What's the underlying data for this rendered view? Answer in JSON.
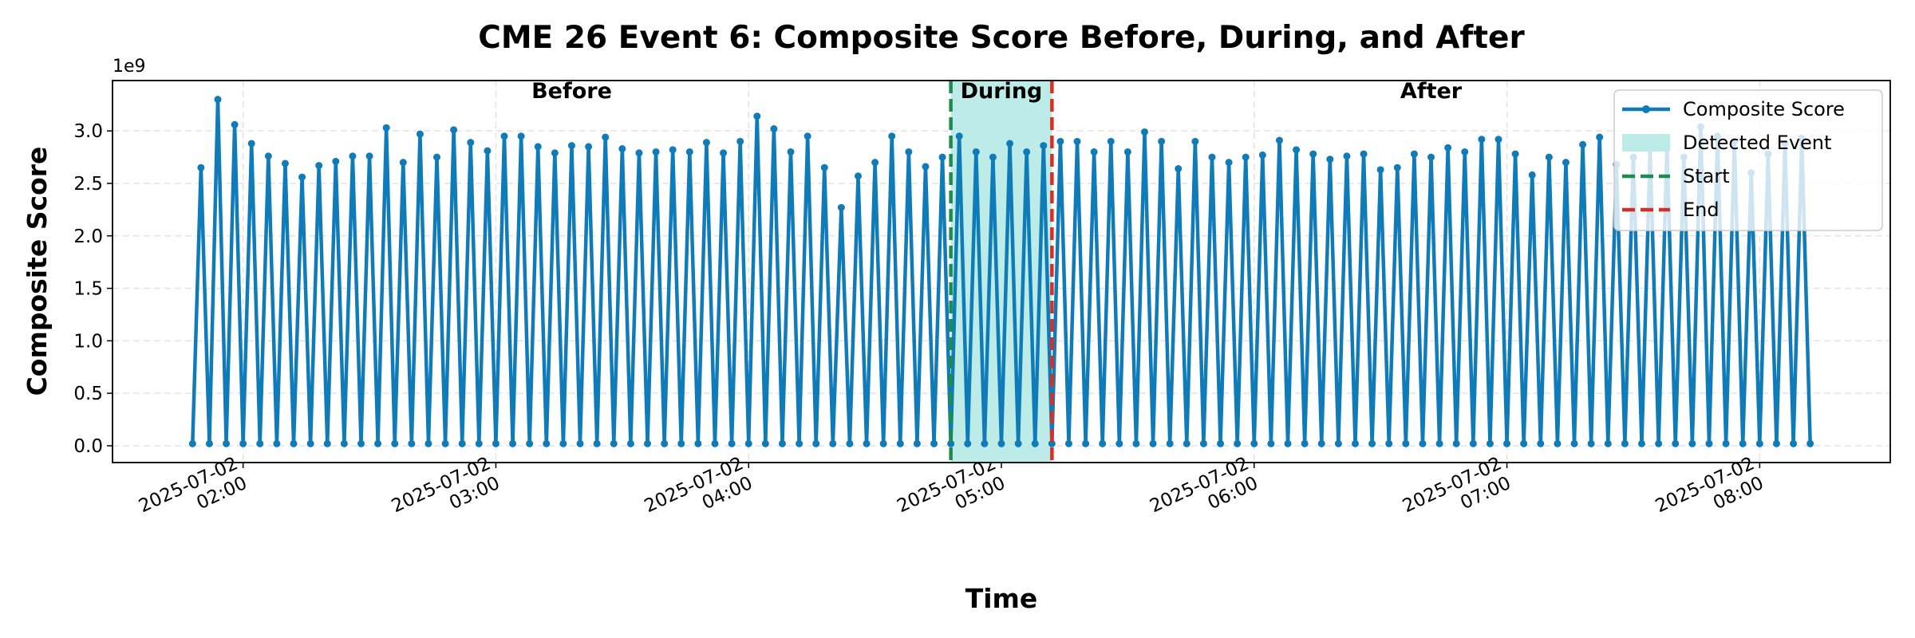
{
  "chart_data": {
    "type": "line",
    "title": "CME 26 Event 6: Composite Score Before, During, and After",
    "xlabel": "Time",
    "ylabel": "Composite Score",
    "y_offset_label": "1e9",
    "grid": true,
    "legend": "upper right",
    "xlim": [
      "2025-07-02 01:29",
      "2025-07-02 08:31"
    ],
    "xticks": [
      {
        "value": "2025-07-02 02:00",
        "label": [
          "2025-07-02",
          "02:00"
        ]
      },
      {
        "value": "2025-07-02 03:00",
        "label": [
          "2025-07-02",
          "03:00"
        ]
      },
      {
        "value": "2025-07-02 04:00",
        "label": [
          "2025-07-02",
          "04:00"
        ]
      },
      {
        "value": "2025-07-02 05:00",
        "label": [
          "2025-07-02",
          "05:00"
        ]
      },
      {
        "value": "2025-07-02 06:00",
        "label": [
          "2025-07-02",
          "06:00"
        ]
      },
      {
        "value": "2025-07-02 07:00",
        "label": [
          "2025-07-02",
          "07:00"
        ]
      },
      {
        "value": "2025-07-02 08:00",
        "label": [
          "2025-07-02",
          "08:00"
        ]
      }
    ],
    "ylim": [
      -0.16,
      3.48
    ],
    "yticks": [
      {
        "value": 0,
        "label": "0.0"
      },
      0.5,
      {
        "value": 1,
        "label": "1.0"
      },
      1.5,
      {
        "value": 2,
        "label": "2.0"
      },
      2.5,
      {
        "value": 3,
        "label": "3.0"
      }
    ],
    "event": {
      "name": "Detected Event",
      "color": "#bdebe7",
      "start": {
        "name": "Start",
        "x": "2025-07-02 04:48",
        "color": "#1e8c4e"
      },
      "end": {
        "name": "End",
        "x": "2025-07-02 05:12",
        "color": "#d62f28"
      }
    },
    "annotations": [
      {
        "text": "Before",
        "color": "#444444"
      },
      {
        "text": "During",
        "color": "#0f7bb8"
      },
      {
        "text": "After",
        "color": "#444444"
      }
    ],
    "x": [
      "2025-07-02 01:48",
      "2025-07-02 01:50",
      "2025-07-02 01:52",
      "2025-07-02 01:54",
      "2025-07-02 01:56",
      "2025-07-02 01:58",
      "2025-07-02 02:00",
      "2025-07-02 02:02",
      "2025-07-02 02:04",
      "2025-07-02 02:06",
      "2025-07-02 02:08",
      "2025-07-02 02:10",
      "2025-07-02 02:12",
      "2025-07-02 02:14",
      "2025-07-02 02:16",
      "2025-07-02 02:18",
      "2025-07-02 02:20",
      "2025-07-02 02:22",
      "2025-07-02 02:24",
      "2025-07-02 02:26",
      "2025-07-02 02:28",
      "2025-07-02 02:30",
      "2025-07-02 02:32",
      "2025-07-02 02:34",
      "2025-07-02 02:36",
      "2025-07-02 02:38",
      "2025-07-02 02:40",
      "2025-07-02 02:42",
      "2025-07-02 02:44",
      "2025-07-02 02:46",
      "2025-07-02 02:48",
      "2025-07-02 02:50",
      "2025-07-02 02:52",
      "2025-07-02 02:54",
      "2025-07-02 02:56",
      "2025-07-02 02:58",
      "2025-07-02 03:00",
      "2025-07-02 03:02",
      "2025-07-02 03:04",
      "2025-07-02 03:06",
      "2025-07-02 03:08",
      "2025-07-02 03:10",
      "2025-07-02 03:12",
      "2025-07-02 03:14",
      "2025-07-02 03:16",
      "2025-07-02 03:18",
      "2025-07-02 03:20",
      "2025-07-02 03:22",
      "2025-07-02 03:24",
      "2025-07-02 03:26",
      "2025-07-02 03:28",
      "2025-07-02 03:30",
      "2025-07-02 03:32",
      "2025-07-02 03:34",
      "2025-07-02 03:36",
      "2025-07-02 03:38",
      "2025-07-02 03:40",
      "2025-07-02 03:42",
      "2025-07-02 03:44",
      "2025-07-02 03:46",
      "2025-07-02 03:48",
      "2025-07-02 03:50",
      "2025-07-02 03:52",
      "2025-07-02 03:54",
      "2025-07-02 03:56",
      "2025-07-02 03:58",
      "2025-07-02 04:00",
      "2025-07-02 04:02",
      "2025-07-02 04:04",
      "2025-07-02 04:06",
      "2025-07-02 04:08",
      "2025-07-02 04:10",
      "2025-07-02 04:12",
      "2025-07-02 04:14",
      "2025-07-02 04:16",
      "2025-07-02 04:18",
      "2025-07-02 04:20",
      "2025-07-02 04:22",
      "2025-07-02 04:24",
      "2025-07-02 04:26",
      "2025-07-02 04:28",
      "2025-07-02 04:30",
      "2025-07-02 04:32",
      "2025-07-02 04:34",
      "2025-07-02 04:36",
      "2025-07-02 04:38",
      "2025-07-02 04:40",
      "2025-07-02 04:42",
      "2025-07-02 04:44",
      "2025-07-02 04:46",
      "2025-07-02 04:48",
      "2025-07-02 04:50",
      "2025-07-02 04:52",
      "2025-07-02 04:54",
      "2025-07-02 04:56",
      "2025-07-02 04:58",
      "2025-07-02 05:00",
      "2025-07-02 05:02",
      "2025-07-02 05:04",
      "2025-07-02 05:06",
      "2025-07-02 05:08",
      "2025-07-02 05:10",
      "2025-07-02 05:12",
      "2025-07-02 05:14",
      "2025-07-02 05:16",
      "2025-07-02 05:18",
      "2025-07-02 05:20",
      "2025-07-02 05:22",
      "2025-07-02 05:24",
      "2025-07-02 05:26",
      "2025-07-02 05:28",
      "2025-07-02 05:30",
      "2025-07-02 05:32",
      "2025-07-02 05:34",
      "2025-07-02 05:36",
      "2025-07-02 05:38",
      "2025-07-02 05:40",
      "2025-07-02 05:42",
      "2025-07-02 05:44",
      "2025-07-02 05:46",
      "2025-07-02 05:48",
      "2025-07-02 05:50",
      "2025-07-02 05:52",
      "2025-07-02 05:54",
      "2025-07-02 05:56",
      "2025-07-02 05:58",
      "2025-07-02 06:00",
      "2025-07-02 06:02",
      "2025-07-02 06:04",
      "2025-07-02 06:06",
      "2025-07-02 06:08",
      "2025-07-02 06:10",
      "2025-07-02 06:12",
      "2025-07-02 06:14",
      "2025-07-02 06:16",
      "2025-07-02 06:18",
      "2025-07-02 06:20",
      "2025-07-02 06:22",
      "2025-07-02 06:24",
      "2025-07-02 06:26",
      "2025-07-02 06:28",
      "2025-07-02 06:30",
      "2025-07-02 06:32",
      "2025-07-02 06:34",
      "2025-07-02 06:36",
      "2025-07-02 06:38",
      "2025-07-02 06:40",
      "2025-07-02 06:42",
      "2025-07-02 06:44",
      "2025-07-02 06:46",
      "2025-07-02 06:48",
      "2025-07-02 06:50",
      "2025-07-02 06:52",
      "2025-07-02 06:54",
      "2025-07-02 06:56",
      "2025-07-02 06:58",
      "2025-07-02 07:00",
      "2025-07-02 07:02",
      "2025-07-02 07:04",
      "2025-07-02 07:06",
      "2025-07-02 07:08",
      "2025-07-02 07:10",
      "2025-07-02 07:12",
      "2025-07-02 07:14",
      "2025-07-02 07:16",
      "2025-07-02 07:18",
      "2025-07-02 07:20",
      "2025-07-02 07:22",
      "2025-07-02 07:24",
      "2025-07-02 07:26",
      "2025-07-02 07:28",
      "2025-07-02 07:30",
      "2025-07-02 07:32",
      "2025-07-02 07:34",
      "2025-07-02 07:36",
      "2025-07-02 07:38",
      "2025-07-02 07:40",
      "2025-07-02 07:42",
      "2025-07-02 07:44",
      "2025-07-02 07:46",
      "2025-07-02 07:48",
      "2025-07-02 07:50",
      "2025-07-02 07:52",
      "2025-07-02 07:54",
      "2025-07-02 07:56",
      "2025-07-02 07:58",
      "2025-07-02 08:00",
      "2025-07-02 08:02",
      "2025-07-02 08:04",
      "2025-07-02 08:06",
      "2025-07-02 08:08",
      "2025-07-02 08:10",
      "2025-07-02 08:12"
    ],
    "series": [
      {
        "name": "Composite Score",
        "color": "#0f7bb8",
        "values": [
          0.02,
          2.65,
          0.02,
          3.3,
          0.02,
          3.06,
          0.02,
          2.88,
          0.02,
          2.76,
          0.02,
          2.69,
          0.02,
          2.56,
          0.02,
          2.67,
          0.02,
          2.71,
          0.02,
          2.76,
          0.02,
          2.76,
          0.02,
          3.03,
          0.02,
          2.7,
          0.02,
          2.97,
          0.02,
          2.75,
          0.02,
          3.01,
          0.02,
          2.89,
          0.02,
          2.81,
          0.02,
          2.95,
          0.02,
          2.95,
          0.02,
          2.85,
          0.02,
          2.79,
          0.02,
          2.86,
          0.02,
          2.85,
          0.02,
          2.94,
          0.02,
          2.83,
          0.02,
          2.79,
          0.02,
          2.8,
          0.02,
          2.82,
          0.02,
          2.8,
          0.02,
          2.89,
          0.02,
          2.79,
          0.02,
          2.9,
          0.02,
          3.14,
          0.02,
          3.02,
          0.02,
          2.8,
          0.02,
          2.95,
          0.02,
          2.65,
          0.02,
          2.27,
          0.02,
          2.57,
          0.02,
          2.7,
          0.02,
          2.95,
          0.02,
          2.8,
          0.02,
          2.66,
          0.02,
          2.75,
          0.02,
          2.95,
          0.02,
          2.8,
          0.02,
          2.75,
          0.02,
          2.88,
          0.02,
          2.8,
          0.02,
          2.86,
          0.02,
          2.9,
          0.02,
          2.9,
          0.02,
          2.8,
          0.02,
          2.9,
          0.02,
          2.8,
          0.02,
          2.99,
          0.02,
          2.9,
          0.02,
          2.64,
          0.02,
          2.9,
          0.02,
          2.75,
          0.02,
          2.7,
          0.02,
          2.75,
          0.02,
          2.77,
          0.02,
          2.91,
          0.02,
          2.82,
          0.02,
          2.78,
          0.02,
          2.73,
          0.02,
          2.76,
          0.02,
          2.78,
          0.02,
          2.63,
          0.02,
          2.65,
          0.02,
          2.78,
          0.02,
          2.75,
          0.02,
          2.84,
          0.02,
          2.8,
          0.02,
          2.92,
          0.02,
          2.92,
          0.02,
          2.78,
          0.02,
          2.58,
          0.02,
          2.75,
          0.02,
          2.7,
          0.02,
          2.87,
          0.02,
          2.94,
          0.02,
          2.68,
          0.02,
          2.75,
          0.02,
          2.82,
          0.02,
          2.86,
          0.02,
          2.75,
          0.02,
          3.04,
          0.02,
          2.95,
          0.02,
          2.9,
          0.02,
          2.6,
          0.02,
          2.78,
          0.02,
          2.88,
          0.02,
          2.93,
          0.02
        ]
      }
    ]
  }
}
